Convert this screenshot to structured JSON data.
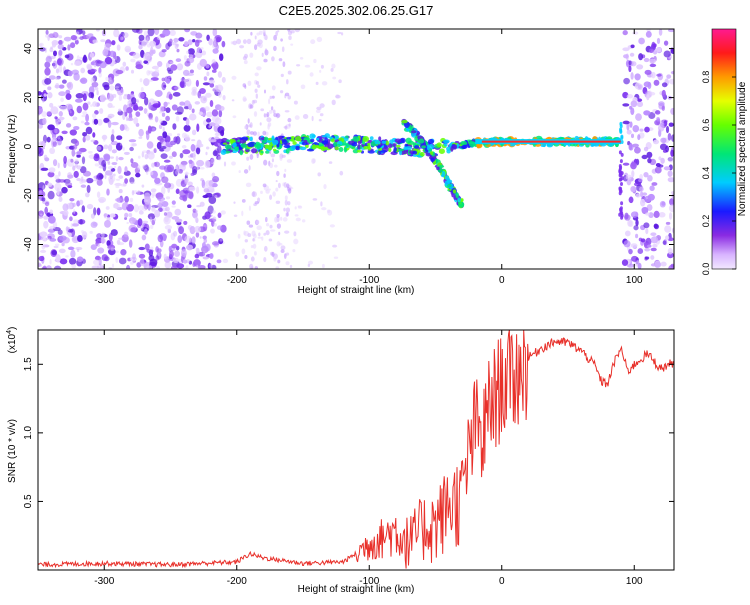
{
  "title": "C2E5.2025.302.06.25.G17",
  "chart_data": [
    {
      "type": "heatmap",
      "name": "spectrogram",
      "xlabel": "Height of straight line (km)",
      "ylabel": "Frequency (Hz)",
      "xlim": [
        -350,
        130
      ],
      "ylim": [
        -50,
        48
      ],
      "x_ticks": [
        -300,
        -200,
        -100,
        0,
        100
      ],
      "x_tick_labels": [
        "-300",
        "-200",
        "-100",
        "0",
        "100"
      ],
      "y_ticks": [
        -40,
        -20,
        0,
        20,
        40
      ],
      "y_tick_labels": [
        "-40",
        "-20",
        "0",
        "20",
        "40"
      ],
      "colorbar": {
        "label": "Normalized spectral amplitude",
        "range": [
          0.0,
          1.0
        ],
        "ticks": [
          0.0,
          0.2,
          0.4,
          0.6,
          0.8
        ],
        "tick_labels": [
          "0.0",
          "0.2",
          "0.4",
          "0.6",
          "0.8"
        ]
      },
      "traces": [
        {
          "name": "carrier",
          "x": [
            -210,
            -180,
            -150,
            -120,
            -100,
            -80,
            -60,
            -40,
            -20,
            0,
            20,
            40,
            60,
            80,
            90
          ],
          "y": [
            0.5,
            0.5,
            1.5,
            1.5,
            0.5,
            0,
            -1,
            0,
            1.5,
            2,
            2,
            2,
            2,
            2,
            2
          ]
        },
        {
          "name": "descending-branch",
          "x": [
            -75,
            -65,
            -55,
            -45,
            -38,
            -32
          ],
          "y": [
            10,
            5,
            -2,
            -10,
            -17,
            -23
          ]
        }
      ]
    },
    {
      "type": "line",
      "name": "snr",
      "xlabel": "Height of straight line (km)",
      "ylabel": "SNR (10 * v/v)",
      "scale_label": "(x10",
      "scale_exp": "4",
      "xlim": [
        -350,
        130
      ],
      "ylim": [
        0,
        1.75
      ],
      "x_ticks": [
        -300,
        -200,
        -100,
        0,
        100
      ],
      "x_tick_labels": [
        "-300",
        "-200",
        "-100",
        "0",
        "100"
      ],
      "y_ticks": [
        0.5,
        1.0,
        1.5
      ],
      "y_tick_labels": [
        "0.5",
        "1.0",
        "1.5"
      ],
      "series": [
        {
          "name": "SNR",
          "color": "#e8302a",
          "x": [
            -350,
            -300,
            -250,
            -200,
            -190,
            -180,
            -150,
            -120,
            -110,
            -100,
            -90,
            -80,
            -70,
            -60,
            -50,
            -40,
            -30,
            -25,
            -20,
            -15,
            -10,
            -5,
            0,
            10,
            20,
            30,
            40,
            50,
            60,
            70,
            75,
            80,
            85,
            90,
            95,
            100,
            110,
            120,
            130
          ],
          "y": [
            0.04,
            0.05,
            0.04,
            0.06,
            0.12,
            0.09,
            0.05,
            0.06,
            0.12,
            0.2,
            0.25,
            0.3,
            0.2,
            0.33,
            0.35,
            0.5,
            0.55,
            0.85,
            1.1,
            0.95,
            1.2,
            1.3,
            1.4,
            1.45,
            1.55,
            1.62,
            1.67,
            1.66,
            1.6,
            1.5,
            1.38,
            1.36,
            1.52,
            1.62,
            1.45,
            1.5,
            1.58,
            1.47,
            1.52
          ]
        }
      ]
    }
  ]
}
